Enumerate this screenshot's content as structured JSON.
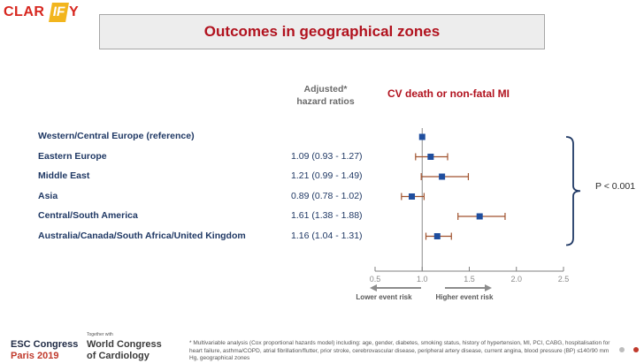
{
  "logo": {
    "pre": "CLAR",
    "accent": "IF",
    "post": "Y"
  },
  "title": "Outcomes in geographical zones",
  "column_header": "Adjusted*\nhazard ratios",
  "endpoint": "CV death or non-fatal MI",
  "p_value": "P < 0.001",
  "chart_data": {
    "type": "forest",
    "title": "Outcomes in geographical zones",
    "xlim": [
      0.5,
      2.5
    ],
    "x_ticks": [
      "0.5",
      "1.0",
      "1.5",
      "2.0",
      "2.5"
    ],
    "reference_line": 1.0,
    "rows": [
      {
        "label": "Western/Central Europe (reference)",
        "hr_text": "",
        "hr": 1.0,
        "lo": 1.0,
        "hi": 1.0
      },
      {
        "label": "Eastern Europe",
        "hr_text": "1.09 (0.93 - 1.27)",
        "hr": 1.09,
        "lo": 0.93,
        "hi": 1.27
      },
      {
        "label": "Middle East",
        "hr_text": "1.21 (0.99 - 1.49)",
        "hr": 1.21,
        "lo": 0.99,
        "hi": 1.49
      },
      {
        "label": "Asia",
        "hr_text": "0.89 (0.78 - 1.02)",
        "hr": 0.89,
        "lo": 0.78,
        "hi": 1.02
      },
      {
        "label": "Central/South America",
        "hr_text": "1.61 (1.38 - 1.88)",
        "hr": 1.61,
        "lo": 1.38,
        "hi": 1.88
      },
      {
        "label": "Australia/Canada/South Africa/United Kingdom",
        "hr_text": "1.16 (1.04 - 1.31)",
        "hr": 1.16,
        "lo": 1.04,
        "hi": 1.31
      }
    ],
    "left_annotation": "Lower event risk",
    "right_annotation": "Higher event risk",
    "colors": {
      "marker": "#1f4e9e",
      "ci": "#a0522d",
      "axis": "#7f7f7f",
      "bracket": "#1f3864"
    }
  },
  "footer": {
    "esc_line1": "ESC Congress",
    "esc_line2": "Paris 2019",
    "together": "Together with",
    "wc_line1": "World Congress",
    "wc_line2": "of Cardiology",
    "footnote": "* Multivariable analysis (Cox proportional hazards model) including: age, gender, diabetes, smoking status, history of hypertension, MI, PCI, CABG, hospitalisation for heart failure, asthma/COPD, atrial fibrillation/flutter, prior stroke, cerebrovascular disease, peripheral artery disease, current angina, blood pressure (BP) ≤140/90 mm Hg, geographical zones"
  }
}
